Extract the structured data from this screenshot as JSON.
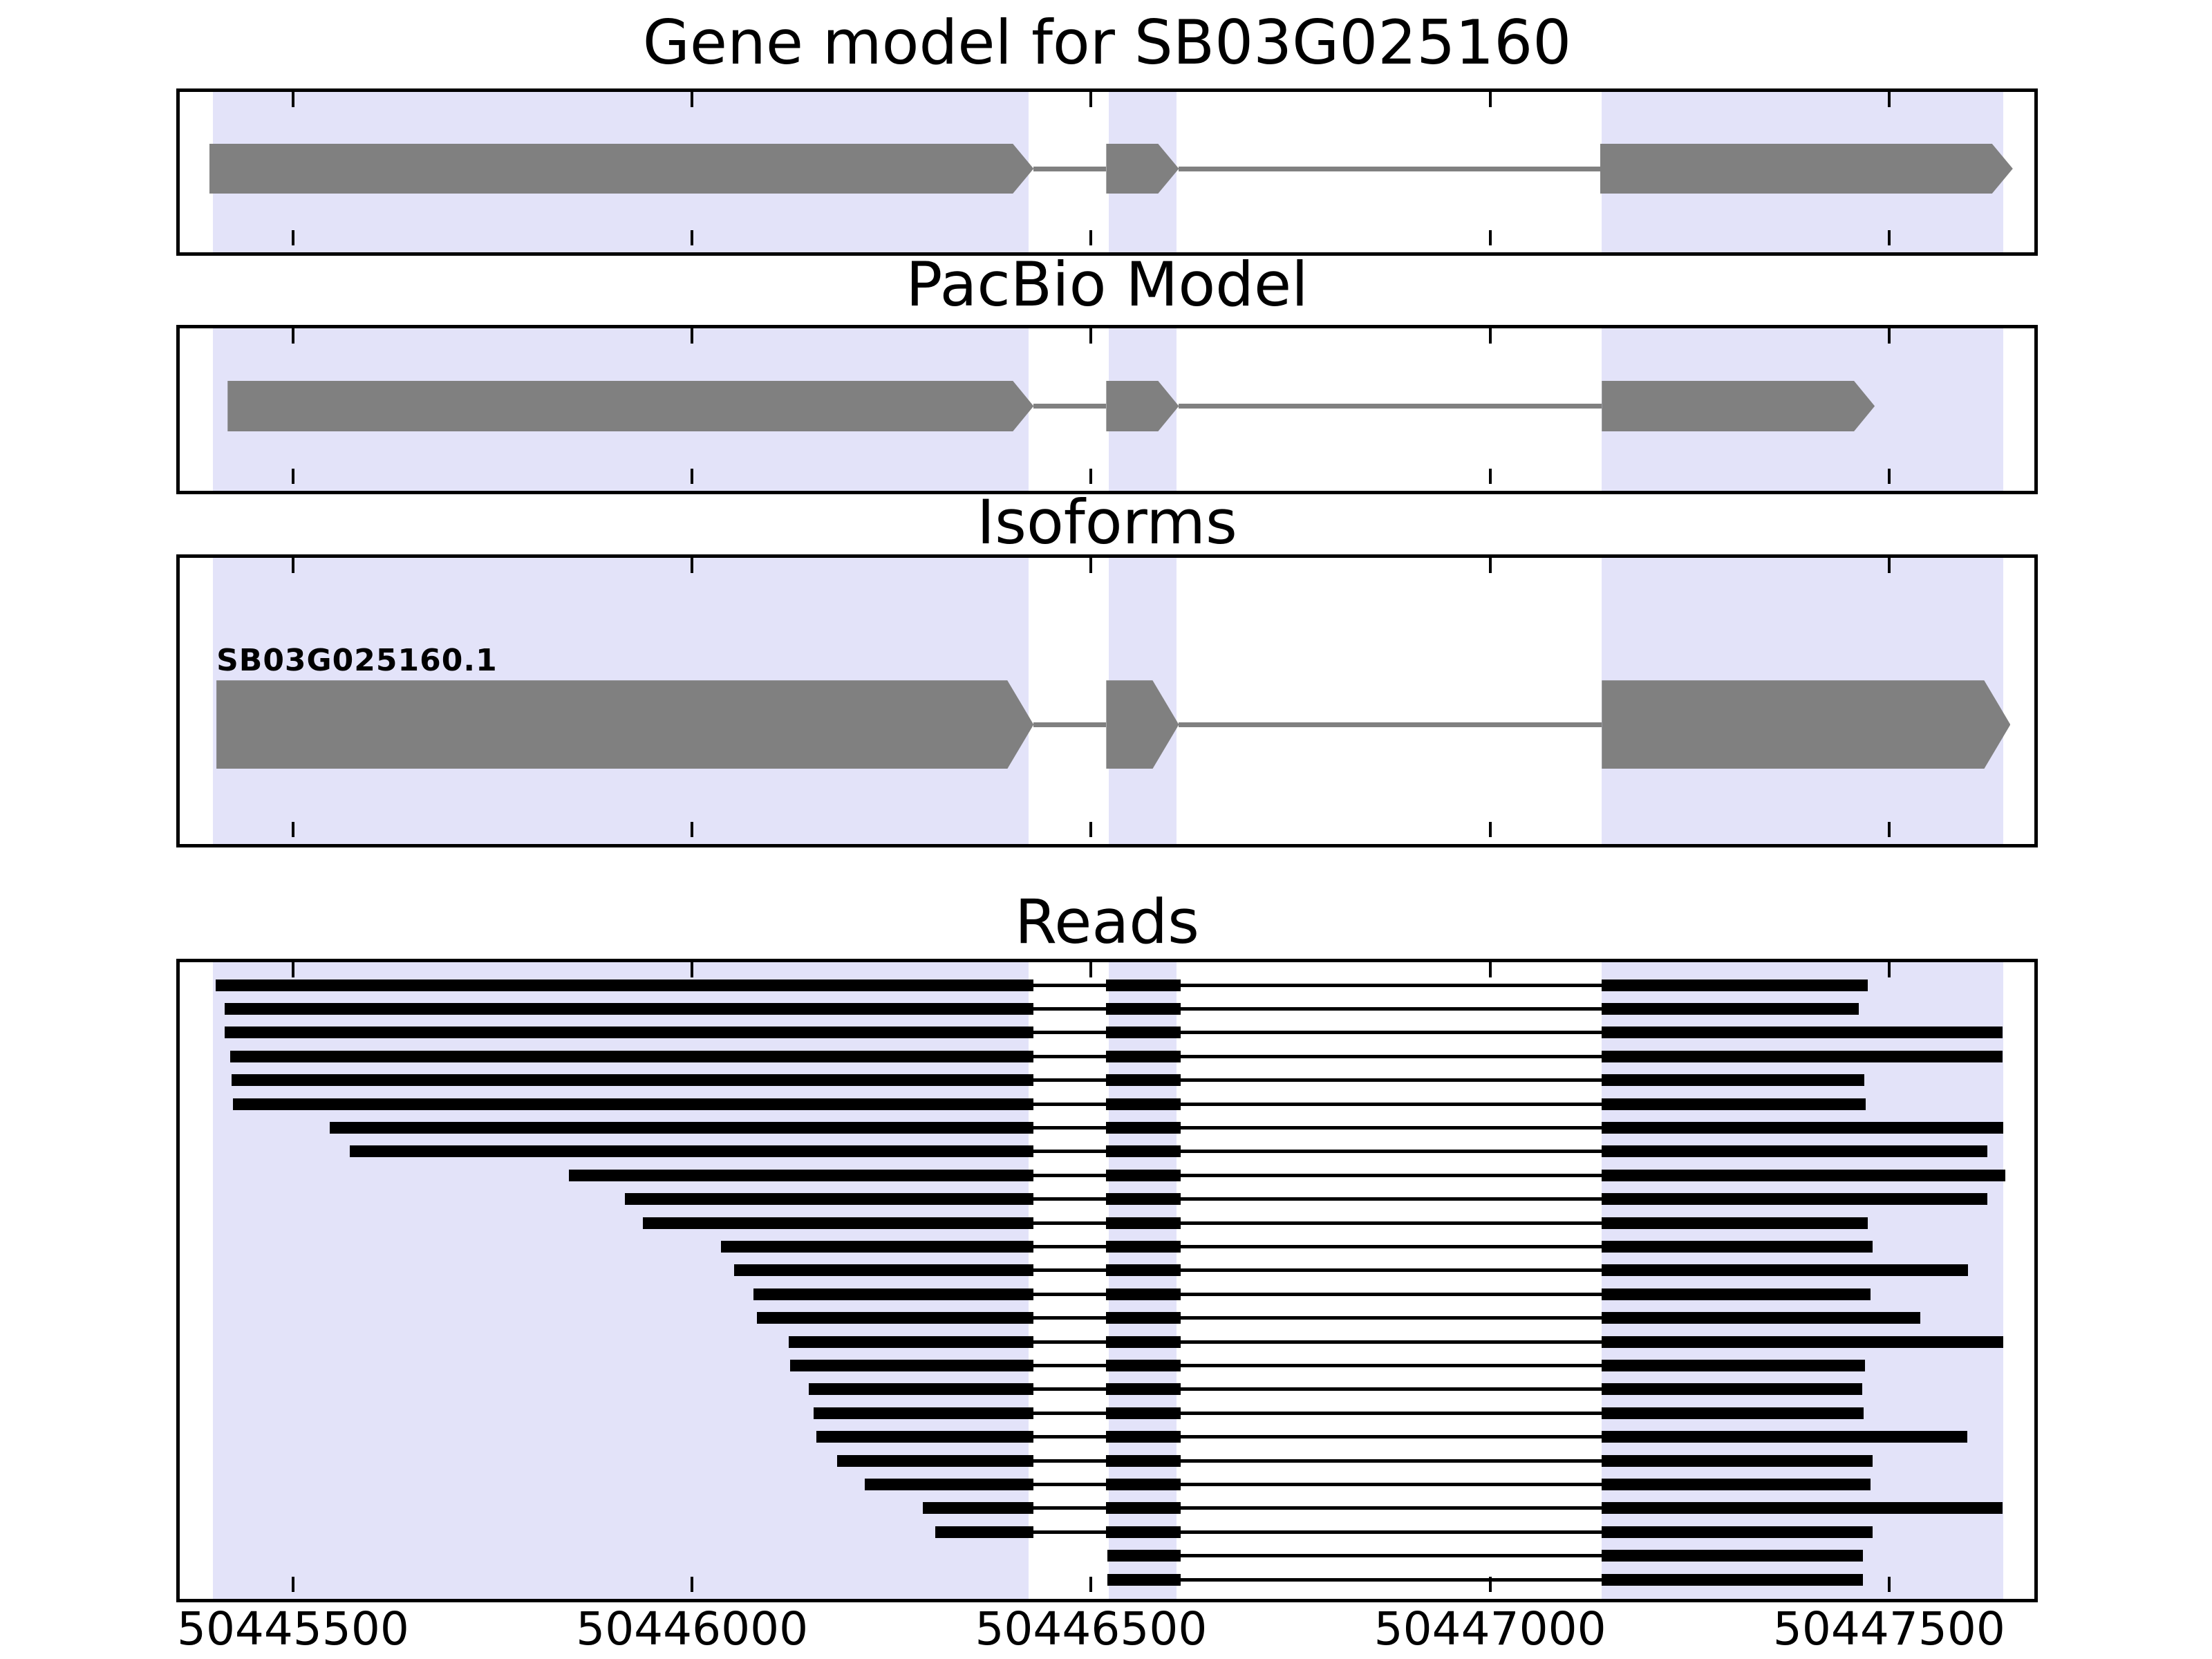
{
  "figure": {
    "background": "#ffffff",
    "highlight_color": "#e3e3f9",
    "model_color": "#808080",
    "read_color": "#000000",
    "border_color": "#000000"
  },
  "chart_data": {
    "type": "gene-model-tracks",
    "xlim": [
      50445358,
      50447682
    ],
    "xticks": [
      50445500,
      50446000,
      50446500,
      50447000,
      50447500
    ],
    "xtick_labels": [
      "50445500",
      "50446000",
      "50446500",
      "50447000",
      "50447500"
    ],
    "grid": false,
    "highlight_regions": [
      [
        50445400,
        50446422
      ],
      [
        50446522,
        50446607
      ],
      [
        50447140,
        50447643
      ]
    ],
    "panels": [
      {
        "id": "gene-model",
        "title": "Gene model for SB03G025160",
        "kind": "model",
        "strand": "+",
        "exons": [
          [
            50445395,
            50446428
          ],
          [
            50446519,
            50446610
          ],
          [
            50447138,
            50447655
          ]
        ]
      },
      {
        "id": "pacbio",
        "title": "PacBio Model",
        "kind": "model",
        "strand": "+",
        "exons": [
          [
            50445418,
            50446428
          ],
          [
            50446519,
            50446610
          ],
          [
            50447140,
            50447482
          ]
        ]
      },
      {
        "id": "isoforms",
        "title": "Isoforms",
        "kind": "model",
        "strand": "+",
        "label": "SB03G025160.1",
        "exons": [
          [
            50445404,
            50446428
          ],
          [
            50446519,
            50446610
          ],
          [
            50447140,
            50447652
          ]
        ]
      },
      {
        "id": "reads",
        "title": "Reads",
        "kind": "reads",
        "exon_windows": [
          [
            50445358,
            50446428
          ],
          [
            50446519,
            50446612
          ],
          [
            50447140,
            50447682
          ]
        ],
        "reads": [
          {
            "start": 50445403,
            "end": 50447473
          },
          {
            "start": 50445414,
            "end": 50447462
          },
          {
            "start": 50445414,
            "end": 50447642
          },
          {
            "start": 50445421,
            "end": 50447642
          },
          {
            "start": 50445423,
            "end": 50447469
          },
          {
            "start": 50445425,
            "end": 50447471
          },
          {
            "start": 50445546,
            "end": 50447643
          },
          {
            "start": 50445571,
            "end": 50447623
          },
          {
            "start": 50445846,
            "end": 50447646
          },
          {
            "start": 50445916,
            "end": 50447623
          },
          {
            "start": 50445938,
            "end": 50447473
          },
          {
            "start": 50446036,
            "end": 50447479
          },
          {
            "start": 50446053,
            "end": 50447599
          },
          {
            "start": 50446077,
            "end": 50447477
          },
          {
            "start": 50446081,
            "end": 50447539
          },
          {
            "start": 50446121,
            "end": 50447643
          },
          {
            "start": 50446123,
            "end": 50447470
          },
          {
            "start": 50446146,
            "end": 50447466
          },
          {
            "start": 50446152,
            "end": 50447468
          },
          {
            "start": 50446156,
            "end": 50447598
          },
          {
            "start": 50446182,
            "end": 50447479
          },
          {
            "start": 50446216,
            "end": 50447477
          },
          {
            "start": 50446289,
            "end": 50447642
          },
          {
            "start": 50446305,
            "end": 50447479
          },
          {
            "start": 50446520,
            "end": 50447467
          },
          {
            "start": 50446520,
            "end": 50447467
          }
        ]
      }
    ]
  }
}
